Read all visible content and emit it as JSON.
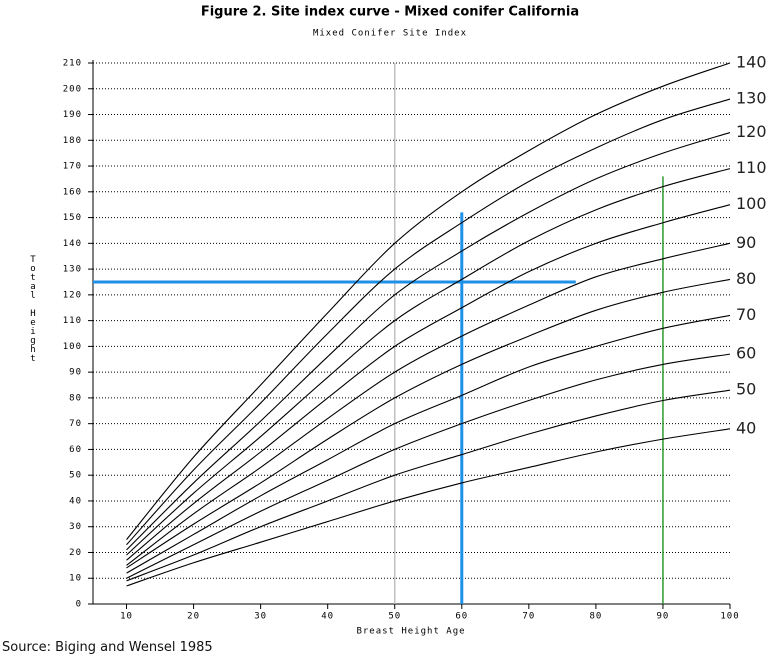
{
  "chart_data": {
    "type": "line",
    "title": "Figure 2. Site index curve - Mixed conifer California",
    "subtitle": "Mixed Conifer Site Index",
    "xlabel": "Breast Height Age",
    "ylabel": "Total Height",
    "x": [
      10,
      20,
      30,
      40,
      50,
      60,
      70,
      80,
      90,
      100
    ],
    "series": [
      {
        "name": "40",
        "color": "#000000",
        "values": [
          7,
          16,
          24,
          32,
          40,
          47,
          53,
          59,
          64,
          68
        ]
      },
      {
        "name": "50",
        "color": "#000000",
        "values": [
          9,
          19,
          30,
          40,
          50,
          58,
          66,
          73,
          79,
          83
        ]
      },
      {
        "name": "60",
        "color": "#000000",
        "values": [
          10,
          23,
          36,
          48,
          60,
          70,
          79,
          87,
          93,
          97
        ]
      },
      {
        "name": "70",
        "color": "#000000",
        "values": [
          12,
          27,
          42,
          56,
          70,
          81,
          92,
          100,
          107,
          112
        ]
      },
      {
        "name": "80",
        "color": "#000000",
        "values": [
          14,
          31,
          47,
          64,
          80,
          93,
          104,
          114,
          121,
          126
        ]
      },
      {
        "name": "90",
        "color": "#000000",
        "values": [
          15,
          35,
          53,
          72,
          90,
          104,
          116,
          127,
          134,
          140
        ]
      },
      {
        "name": "100",
        "color": "#000000",
        "values": [
          17,
          39,
          59,
          80,
          100,
          115,
          129,
          140,
          148,
          155
        ]
      },
      {
        "name": "110",
        "color": "#000000",
        "values": [
          19,
          43,
          65,
          88,
          110,
          126,
          141,
          153,
          162,
          169
        ]
      },
      {
        "name": "120",
        "color": "#000000",
        "values": [
          21,
          47,
          71,
          96,
          120,
          137,
          152,
          165,
          175,
          183
        ]
      },
      {
        "name": "130",
        "color": "#000000",
        "values": [
          23,
          52,
          78,
          105,
          130,
          148,
          164,
          177,
          188,
          196
        ]
      },
      {
        "name": "140",
        "color": "#000000",
        "values": [
          25,
          57,
          85,
          113,
          140,
          160,
          176,
          190,
          201,
          210
        ]
      }
    ],
    "reference_lines": [
      {
        "orientation": "vertical",
        "value": 50,
        "start": 0,
        "end": 210,
        "color": "#c0c0c0"
      },
      {
        "orientation": "horizontal",
        "value": 125,
        "start": 5,
        "end": 77,
        "color": "#1e90e6"
      },
      {
        "orientation": "vertical",
        "value": 60,
        "start": 0,
        "end": 152,
        "color": "#1e90e6"
      },
      {
        "orientation": "vertical",
        "value": 90,
        "start": 0,
        "end": 166,
        "color": "#2e9a2e"
      }
    ],
    "xlim": [
      5,
      100
    ],
    "ylim": [
      0,
      210
    ],
    "xticks": [
      10,
      20,
      30,
      40,
      50,
      60,
      70,
      80,
      90,
      100
    ],
    "yticks": [
      0,
      10,
      20,
      30,
      40,
      50,
      60,
      70,
      80,
      90,
      100,
      110,
      120,
      130,
      140,
      150,
      160,
      170,
      180,
      190,
      200,
      210
    ],
    "grid": true
  },
  "source": "Source: Biging and Wensel 1985"
}
